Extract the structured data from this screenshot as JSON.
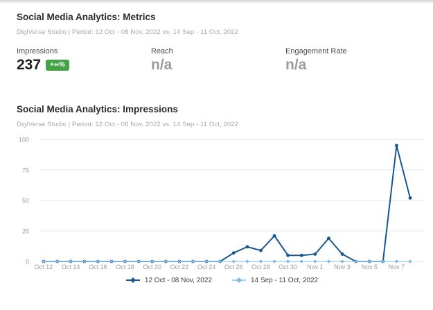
{
  "metrics_section": {
    "title": "Social Media Analytics: Metrics",
    "subtitle": "DigiVerse Studio | Period: 12 Oct - 08 Nov, 2022 vs. 14 Sep - 11 Oct, 2022",
    "metrics": [
      {
        "label": "Impressions",
        "value": "237",
        "badge": "+∞%"
      },
      {
        "label": "Reach",
        "value": "n/a"
      },
      {
        "label": "Engagement Rate",
        "value": "n/a"
      }
    ]
  },
  "chart_section": {
    "title": "Social Media Analytics: Impressions",
    "subtitle": "DigiVerse Studio | Period: 12 Oct - 08 Nov, 2022 vs. 14 Sep - 11 Oct, 2022"
  },
  "colors": {
    "series_current": "#17558f",
    "series_previous_line": "#a3d0ee",
    "series_previous_marker": "#7db9e3",
    "badge_green": "#44a348",
    "grid": "#e7e7e7",
    "axis_text": "#9a9a9a"
  },
  "chart_data": {
    "type": "line",
    "title": "Social Media Analytics: Impressions",
    "x": [
      "Oct 12",
      "Oct 13",
      "Oct 14",
      "Oct 15",
      "Oct 16",
      "Oct 17",
      "Oct 18",
      "Oct 19",
      "Oct 20",
      "Oct 21",
      "Oct 22",
      "Oct 23",
      "Oct 24",
      "Oct 25",
      "Oct 26",
      "Oct 27",
      "Oct 28",
      "Oct 29",
      "Oct 30",
      "Oct 31",
      "Nov 1",
      "Nov 2",
      "Nov 3",
      "Nov 4",
      "Nov 5",
      "Nov 6",
      "Nov 7",
      "Nov 8"
    ],
    "x_tick_labels": [
      "Oct 12",
      "Oct 14",
      "Oct 16",
      "Oct 18",
      "Oct 20",
      "Oct 22",
      "Oct 24",
      "Oct 26",
      "Oct 28",
      "Oct 30",
      "Nov 1",
      "Nov 3",
      "Nov 5",
      "Nov 7"
    ],
    "xlabel": "",
    "ylabel": "",
    "ylim": [
      0,
      100
    ],
    "yticks": [
      0,
      25,
      50,
      75,
      100
    ],
    "grid": true,
    "legend_position": "bottom",
    "series": [
      {
        "name": "12 Oct - 08 Nov, 2022",
        "color": "#17558f",
        "marker": "circle",
        "values": [
          0,
          0,
          0,
          0,
          0,
          0,
          0,
          0,
          0,
          0,
          0,
          0,
          0,
          0,
          7,
          12,
          9,
          21,
          5,
          5,
          6,
          19,
          6,
          0,
          0,
          0,
          95,
          52
        ]
      },
      {
        "name": "14 Sep - 11 Oct, 2022",
        "color": "#a3d0ee",
        "marker": "diamond",
        "values": [
          0,
          0,
          0,
          0,
          0,
          0,
          0,
          0,
          0,
          0,
          0,
          0,
          0,
          0,
          0,
          0,
          0,
          0,
          0,
          0,
          0,
          0,
          0,
          0,
          0,
          0,
          0,
          0
        ]
      }
    ]
  }
}
